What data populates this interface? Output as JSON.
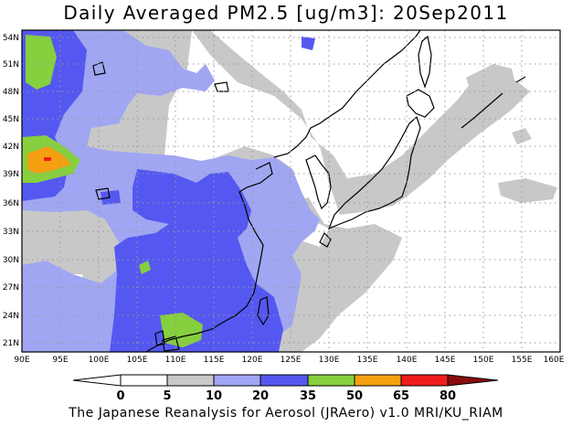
{
  "title": "Daily Averaged PM2.5 [ug/m3]: 20Sep2011",
  "credit": "The Japanese Reanalysis for Aerosol (JRAero) v1.0 MRI/KU_RIAM",
  "lat_labels": [
    "54N",
    "51N",
    "48N",
    "45N",
    "42N",
    "39N",
    "36N",
    "33N",
    "30N",
    "27N",
    "24N",
    "21N"
  ],
  "lon_labels": [
    "90E",
    "95E",
    "100E",
    "105E",
    "110E",
    "115E",
    "120E",
    "125E",
    "130E",
    "135E",
    "140E",
    "145E",
    "150E",
    "155E",
    "160E"
  ],
  "colorbar": {
    "labels": [
      "0",
      "5",
      "10",
      "20",
      "35",
      "50",
      "65",
      "80"
    ],
    "colors": [
      "#ffffff",
      "#c8c8c8",
      "#a0a6f2",
      "#5458f0",
      "#86cf3e",
      "#f4a010",
      "#ef1c1c",
      "#8a0c0c"
    ]
  },
  "legend_fill_colors": {
    "band_5_10": "#c8c8c8",
    "band_10_20": "#a0a6f2",
    "band_20_35": "#5458f0",
    "band_35_50": "#86cf3e",
    "band_50_65": "#f4a010",
    "band_65_80": "#ef1c1c"
  }
}
